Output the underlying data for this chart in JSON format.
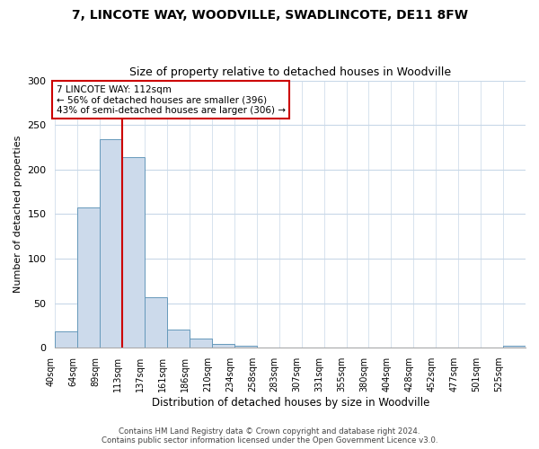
{
  "title": "7, LINCOTE WAY, WOODVILLE, SWADLINCOTE, DE11 8FW",
  "subtitle": "Size of property relative to detached houses in Woodville",
  "xlabel": "Distribution of detached houses by size in Woodville",
  "ylabel": "Number of detached properties",
  "bin_labels": [
    "40sqm",
    "64sqm",
    "89sqm",
    "113sqm",
    "137sqm",
    "161sqm",
    "186sqm",
    "210sqm",
    "234sqm",
    "258sqm",
    "283sqm",
    "307sqm",
    "331sqm",
    "355sqm",
    "380sqm",
    "404sqm",
    "428sqm",
    "452sqm",
    "477sqm",
    "501sqm",
    "525sqm"
  ],
  "bar_values": [
    18,
    157,
    234,
    214,
    57,
    20,
    10,
    4,
    2,
    0,
    0,
    0,
    0,
    0,
    0,
    0,
    0,
    0,
    0,
    0,
    2
  ],
  "bar_color": "#ccdaeb",
  "bar_edge_color": "#6699bb",
  "property_line_color": "#cc0000",
  "annotation_text": "7 LINCOTE WAY: 112sqm\n← 56% of detached houses are smaller (396)\n43% of semi-detached houses are larger (306) →",
  "annotation_box_color": "#ffffff",
  "annotation_box_edge": "#cc0000",
  "ylim": [
    0,
    300
  ],
  "yticks": [
    0,
    50,
    100,
    150,
    200,
    250,
    300
  ],
  "footer_line1": "Contains HM Land Registry data © Crown copyright and database right 2024.",
  "footer_line2": "Contains public sector information licensed under the Open Government Licence v3.0.",
  "bg_color": "#ffffff",
  "grid_color": "#c8d8e8"
}
